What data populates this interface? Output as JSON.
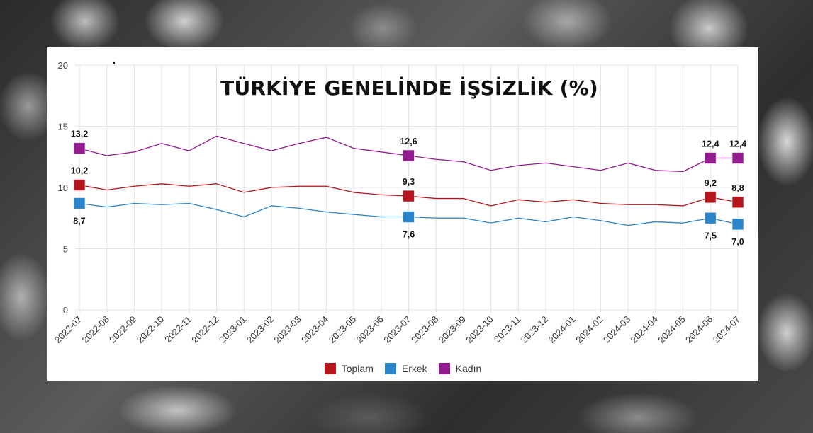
{
  "title": "TÜRKİYE GENELİNDE İŞSİZLİK (%)",
  "legend": [
    {
      "label": "Toplam",
      "color": "#b5161d"
    },
    {
      "label": "Erkek",
      "color": "#2a84c9"
    },
    {
      "label": "Kadın",
      "color": "#941b8f"
    }
  ],
  "chart_data": {
    "type": "line",
    "title": "TÜRKİYE GENELİNDE İŞSİZLİK (%)",
    "xlabel": "",
    "ylabel": "",
    "ylim": [
      0,
      20
    ],
    "yticks": [
      0,
      5,
      10,
      15,
      20
    ],
    "grid": true,
    "legend_position": "bottom",
    "categories": [
      "2022-07",
      "2022-08",
      "2022-09",
      "2022-10",
      "2022-11",
      "2022-12",
      "2023-01",
      "2023-02",
      "2023-03",
      "2023-04",
      "2023-05",
      "2023-06",
      "2023-07",
      "2023-08",
      "2023-09",
      "2023-10",
      "2023-11",
      "2023-12",
      "2024-01",
      "2024-02",
      "2024-03",
      "2024-04",
      "2024-05",
      "2024-06",
      "2024-07"
    ],
    "series": [
      {
        "name": "Toplam",
        "color": "#b5161d",
        "values": [
          10.2,
          9.8,
          10.1,
          10.3,
          10.1,
          10.3,
          9.6,
          10.0,
          10.1,
          10.1,
          9.6,
          9.4,
          9.3,
          9.1,
          9.1,
          8.5,
          9.0,
          8.8,
          9.0,
          8.7,
          8.6,
          8.6,
          8.5,
          9.2,
          8.8
        ],
        "labeled_points": [
          {
            "index": 0,
            "label": "10,2"
          },
          {
            "index": 12,
            "label": "9,3"
          },
          {
            "index": 23,
            "label": "9,2"
          },
          {
            "index": 24,
            "label": "8,8"
          }
        ]
      },
      {
        "name": "Erkek",
        "color": "#2a84c9",
        "values": [
          8.7,
          8.4,
          8.7,
          8.6,
          8.7,
          8.2,
          7.6,
          8.5,
          8.3,
          8.0,
          7.8,
          7.6,
          7.6,
          7.5,
          7.5,
          7.1,
          7.5,
          7.2,
          7.6,
          7.3,
          6.9,
          7.2,
          7.1,
          7.5,
          7.0
        ],
        "labeled_points": [
          {
            "index": 0,
            "label": "8,7"
          },
          {
            "index": 12,
            "label": "7,6"
          },
          {
            "index": 23,
            "label": "7,5"
          },
          {
            "index": 24,
            "label": "7,0"
          }
        ]
      },
      {
        "name": "Kadın",
        "color": "#941b8f",
        "values": [
          13.2,
          12.6,
          12.9,
          13.6,
          13.0,
          14.2,
          13.6,
          13.0,
          13.6,
          14.1,
          13.2,
          12.9,
          12.6,
          12.3,
          12.1,
          11.4,
          11.8,
          12.0,
          11.7,
          11.4,
          12.0,
          11.4,
          11.3,
          12.4,
          12.4
        ],
        "labeled_points": [
          {
            "index": 0,
            "label": "13,2"
          },
          {
            "index": 12,
            "label": "12,6"
          },
          {
            "index": 23,
            "label": "12,4"
          },
          {
            "index": 24,
            "label": "12,4"
          }
        ]
      }
    ]
  }
}
